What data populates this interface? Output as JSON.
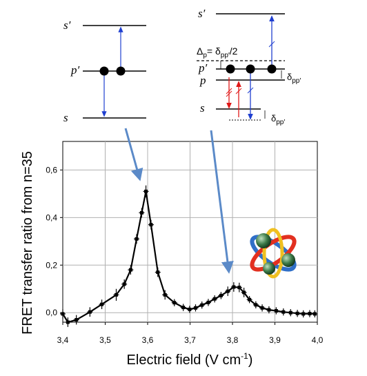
{
  "chart_data": {
    "type": "line",
    "xlabel": "Electric field (V cm",
    "xlabel_sup": "-1",
    "xlabel_close": ")",
    "ylabel": "FRET transfer ratio from n=35",
    "xlim": [
      3.4,
      4.0
    ],
    "ylim": [
      -0.04,
      0.72
    ],
    "x_ticks": [
      "3,4",
      "3,5",
      "3,6",
      "3,7",
      "3,8",
      "3,9",
      "4,0"
    ],
    "y_ticks": [
      "0,0",
      "0,2",
      "0,4",
      "0,6"
    ],
    "x_tick_values": [
      3.4,
      3.5,
      3.6,
      3.7,
      3.8,
      3.9,
      4.0
    ],
    "y_tick_values": [
      0.0,
      0.2,
      0.4,
      0.6
    ],
    "grid": true,
    "series": [
      {
        "x": [
          3.4,
          3.412,
          3.432,
          3.464,
          3.492,
          3.526,
          3.545,
          3.56,
          3.574,
          3.586,
          3.596,
          3.608,
          3.624,
          3.641,
          3.663,
          3.684,
          3.699,
          3.713,
          3.728,
          3.743,
          3.758,
          3.773,
          3.789,
          3.803,
          3.816,
          3.827,
          3.84,
          3.855,
          3.87,
          3.886,
          3.903,
          3.92,
          3.937,
          3.953,
          3.967,
          3.982,
          3.994
        ],
        "y": [
          -0.005,
          -0.04,
          -0.03,
          0.003,
          0.035,
          0.075,
          0.12,
          0.18,
          0.31,
          0.42,
          0.51,
          0.37,
          0.17,
          0.075,
          0.042,
          0.022,
          0.014,
          0.02,
          0.032,
          0.043,
          0.058,
          0.072,
          0.09,
          0.108,
          0.106,
          0.085,
          0.055,
          0.033,
          0.02,
          0.012,
          0.008,
          0.003,
          0.0,
          -0.003,
          -0.005,
          -0.004,
          -0.005
        ],
        "err": [
          0.02,
          0.02,
          0.02,
          0.02,
          0.02,
          0.025,
          0.02,
          0.02,
          0.02,
          0.02,
          0.025,
          0.02,
          0.02,
          0.02,
          0.015,
          0.015,
          0.015,
          0.015,
          0.015,
          0.015,
          0.015,
          0.015,
          0.02,
          0.02,
          0.02,
          0.02,
          0.015,
          0.015,
          0.015,
          0.015,
          0.015,
          0.015,
          0.015,
          0.015,
          0.015,
          0.015,
          0.015
        ]
      }
    ]
  },
  "diagram_left": {
    "level_top": "s′",
    "level_mid": "p′",
    "level_bottom": "s"
  },
  "diagram_right": {
    "level_top": "s′",
    "delta_label": "Δ",
    "delta_sub": "p",
    "delta_eq": "= δ",
    "delta_eq_sub": "pp′",
    "delta_tail": "/2",
    "level_pprime": "p′",
    "level_p": "p",
    "level_s": "s",
    "delta_right_1": "δ",
    "delta_right_1_sub": "pp′",
    "delta_right_2": "δ",
    "delta_right_2_sub": "pp′"
  },
  "colors": {
    "blue_transition": "#1f3fd0",
    "red_transition": "#e01818",
    "pointer_arrow": "#5b8ac8",
    "curve": "#000000",
    "grid": "#b0b0b0"
  }
}
